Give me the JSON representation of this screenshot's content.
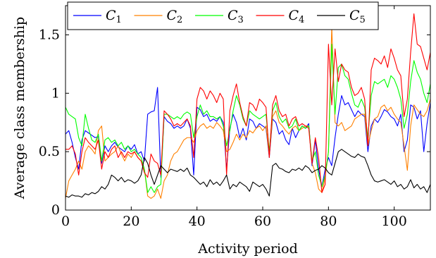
{
  "chart_data": {
    "type": "line",
    "xlabel": "Activity period",
    "ylabel": "Average class membership",
    "xlim": [
      0,
      111
    ],
    "ylim": [
      0,
      1.75
    ],
    "grid": false,
    "legend_position": "top, horizontal",
    "x_ticks": [
      0,
      20,
      40,
      60,
      80,
      100
    ],
    "x_tick_labels": [
      "0",
      "20",
      "40",
      "60",
      "80",
      "100"
    ],
    "y_ticks": [
      0,
      0.5,
      1,
      1.5
    ],
    "y_tick_labels": [
      "0",
      "0.5",
      "1",
      "1.5"
    ],
    "x": [
      0,
      1,
      2,
      3,
      4,
      5,
      6,
      7,
      8,
      9,
      10,
      11,
      12,
      13,
      14,
      15,
      16,
      17,
      18,
      19,
      20,
      21,
      22,
      23,
      24,
      25,
      26,
      27,
      28,
      29,
      30,
      31,
      32,
      33,
      34,
      35,
      36,
      37,
      38,
      39,
      40,
      41,
      42,
      43,
      44,
      45,
      46,
      47,
      48,
      49,
      50,
      51,
      52,
      53,
      54,
      55,
      56,
      57,
      58,
      59,
      60,
      61,
      62,
      63,
      64,
      65,
      66,
      67,
      68,
      69,
      70,
      71,
      72,
      73,
      74,
      75,
      76,
      77,
      78,
      79,
      80,
      81,
      82,
      83,
      84,
      85,
      86,
      87,
      88,
      89,
      90,
      91,
      92,
      93,
      94,
      95,
      96,
      97,
      98,
      99,
      100,
      101,
      102,
      103,
      104,
      105,
      106,
      107,
      108,
      109,
      110,
      111
    ],
    "series": [
      {
        "name": "C",
        "subscript": "1",
        "color": "#0000ff",
        "values": [
          0.65,
          0.68,
          0.58,
          0.45,
          0.35,
          0.6,
          0.68,
          0.66,
          0.64,
          0.62,
          0.63,
          0.4,
          0.55,
          0.5,
          0.55,
          0.58,
          0.54,
          0.52,
          0.5,
          0.55,
          0.52,
          0.56,
          0.48,
          0.5,
          0.42,
          0.82,
          0.84,
          0.85,
          1.05,
          0.28,
          0.8,
          0.76,
          0.74,
          0.7,
          0.72,
          0.7,
          0.72,
          0.78,
          0.7,
          0.3,
          0.88,
          0.86,
          0.8,
          0.82,
          0.76,
          0.78,
          0.76,
          0.8,
          0.75,
          0.35,
          0.7,
          0.82,
          0.75,
          0.62,
          0.7,
          0.6,
          0.78,
          0.76,
          0.7,
          0.74,
          0.72,
          0.7,
          0.45,
          0.78,
          0.75,
          0.65,
          0.68,
          0.6,
          0.56,
          0.7,
          0.62,
          0.68,
          0.72,
          0.7,
          0.74,
          0.38,
          0.6,
          0.35,
          0.2,
          0.35,
          0.45,
          0.38,
          0.62,
          0.82,
          0.98,
          0.9,
          0.92,
          0.86,
          0.8,
          0.85,
          0.82,
          0.8,
          0.5,
          0.72,
          0.78,
          0.75,
          0.8,
          0.86,
          0.84,
          0.8,
          0.78,
          0.72,
          0.82,
          0.5,
          0.6,
          0.9,
          0.88,
          0.78,
          0.85,
          0.5,
          0.74,
          0.92
        ]
      },
      {
        "name": "C",
        "subscript": "2",
        "color": "#ff8000",
        "values": [
          0.1,
          0.25,
          0.3,
          0.35,
          0.42,
          0.35,
          0.5,
          0.55,
          0.52,
          0.48,
          0.68,
          0.72,
          0.42,
          0.45,
          0.48,
          0.5,
          0.55,
          0.48,
          0.42,
          0.48,
          0.45,
          0.5,
          0.45,
          0.42,
          0.35,
          0.12,
          0.1,
          0.12,
          0.18,
          0.1,
          0.25,
          0.3,
          0.42,
          0.48,
          0.5,
          0.55,
          0.6,
          0.62,
          0.62,
          0.58,
          0.68,
          0.72,
          0.74,
          0.7,
          0.72,
          0.7,
          0.75,
          0.72,
          0.68,
          0.5,
          0.52,
          0.58,
          0.65,
          0.6,
          0.65,
          0.62,
          0.68,
          0.66,
          0.7,
          0.72,
          0.68,
          0.72,
          0.46,
          0.8,
          0.85,
          0.75,
          0.72,
          0.68,
          0.65,
          0.7,
          0.72,
          0.68,
          0.7,
          0.72,
          0.72,
          0.4,
          0.32,
          0.18,
          0.15,
          0.28,
          0.5,
          1.57,
          0.75,
          0.72,
          0.75,
          0.68,
          0.7,
          0.72,
          0.78,
          0.8,
          0.82,
          0.82,
          0.55,
          0.68,
          0.78,
          0.8,
          0.88,
          0.9,
          0.85,
          0.88,
          0.82,
          0.78,
          0.75,
          0.55,
          0.34,
          0.72,
          0.9,
          0.86,
          0.82,
          0.8,
          0.85,
          0.95
        ]
      },
      {
        "name": "C",
        "subscript": "3",
        "color": "#00ff00",
        "values": [
          0.88,
          0.82,
          0.8,
          0.78,
          0.62,
          0.55,
          0.82,
          0.7,
          0.6,
          0.58,
          0.65,
          0.42,
          0.6,
          0.62,
          0.58,
          0.6,
          0.55,
          0.58,
          0.52,
          0.55,
          0.5,
          0.52,
          0.48,
          0.45,
          0.35,
          0.15,
          0.2,
          0.15,
          0.2,
          0.22,
          0.82,
          0.82,
          0.8,
          0.78,
          0.8,
          0.78,
          0.82,
          0.84,
          0.82,
          0.62,
          0.8,
          0.9,
          0.82,
          0.85,
          0.8,
          0.8,
          0.78,
          0.8,
          0.72,
          0.55,
          0.68,
          0.85,
          0.98,
          0.9,
          0.78,
          0.72,
          0.85,
          0.82,
          0.8,
          0.78,
          0.8,
          0.82,
          0.5,
          0.85,
          0.92,
          0.8,
          0.75,
          0.78,
          0.7,
          0.72,
          0.78,
          0.68,
          0.72,
          0.7,
          0.72,
          0.42,
          0.5,
          0.3,
          0.2,
          0.3,
          0.5,
          1.42,
          0.82,
          1.22,
          1.25,
          1.15,
          1.12,
          1.0,
          0.9,
          0.88,
          0.95,
          0.88,
          0.62,
          0.98,
          1.1,
          1.08,
          1.1,
          1.12,
          1.05,
          1.15,
          1.12,
          1.05,
          0.95,
          0.7,
          0.82,
          1.1,
          1.28,
          1.18,
          1.12,
          1.0,
          0.92,
          1.08
        ]
      },
      {
        "name": "C",
        "subscript": "4",
        "color": "#ff0000",
        "values": [
          0.52,
          0.52,
          0.55,
          0.48,
          0.3,
          0.5,
          0.62,
          0.58,
          0.55,
          0.52,
          0.6,
          0.35,
          0.5,
          0.45,
          0.52,
          0.55,
          0.45,
          0.5,
          0.45,
          0.5,
          0.48,
          0.5,
          0.45,
          0.42,
          0.32,
          0.28,
          0.48,
          0.42,
          0.4,
          0.3,
          0.85,
          0.82,
          0.78,
          0.72,
          0.74,
          0.72,
          0.75,
          0.78,
          0.72,
          0.45,
          0.95,
          1.05,
          1.02,
          0.95,
          1.02,
          0.98,
          0.92,
          1.0,
          0.95,
          0.3,
          0.85,
          0.98,
          1.08,
          0.92,
          0.8,
          0.72,
          0.92,
          0.9,
          0.85,
          0.95,
          0.92,
          0.88,
          0.45,
          0.9,
          0.98,
          0.85,
          0.8,
          0.82,
          0.72,
          0.78,
          0.8,
          0.72,
          0.74,
          0.72,
          0.7,
          0.4,
          0.62,
          0.45,
          0.15,
          0.22,
          1.42,
          0.9,
          1.38,
          1.1,
          1.25,
          1.2,
          1.18,
          1.05,
          0.98,
          1.0,
          1.05,
          0.95,
          0.55,
          1.2,
          1.3,
          1.28,
          1.25,
          1.32,
          1.22,
          1.38,
          1.3,
          1.2,
          1.15,
          0.8,
          0.95,
          1.35,
          1.68,
          1.42,
          1.4,
          1.3,
          1.2,
          1.35
        ]
      },
      {
        "name": "C",
        "subscript": "5",
        "color": "#000000",
        "values": [
          0.12,
          0.11,
          0.13,
          0.12,
          0.12,
          0.11,
          0.14,
          0.13,
          0.15,
          0.14,
          0.16,
          0.2,
          0.18,
          0.22,
          0.3,
          0.28,
          0.25,
          0.28,
          0.24,
          0.26,
          0.25,
          0.23,
          0.25,
          0.3,
          0.45,
          0.4,
          0.3,
          0.22,
          0.3,
          0.38,
          0.35,
          0.32,
          0.35,
          0.34,
          0.33,
          0.35,
          0.33,
          0.36,
          0.3,
          0.28,
          0.25,
          0.22,
          0.24,
          0.2,
          0.26,
          0.22,
          0.24,
          0.21,
          0.25,
          0.3,
          0.18,
          0.22,
          0.2,
          0.24,
          0.22,
          0.2,
          0.16,
          0.24,
          0.22,
          0.2,
          0.22,
          0.18,
          0.12,
          0.38,
          0.4,
          0.36,
          0.35,
          0.33,
          0.32,
          0.35,
          0.34,
          0.36,
          0.34,
          0.38,
          0.36,
          0.32,
          0.34,
          0.35,
          0.38,
          0.36,
          0.32,
          0.3,
          0.4,
          0.5,
          0.52,
          0.5,
          0.48,
          0.46,
          0.45,
          0.48,
          0.46,
          0.45,
          0.38,
          0.3,
          0.25,
          0.24,
          0.25,
          0.26,
          0.24,
          0.22,
          0.25,
          0.2,
          0.22,
          0.18,
          0.2,
          0.26,
          0.19,
          0.22,
          0.18,
          0.2,
          0.15,
          0.22
        ]
      }
    ]
  }
}
